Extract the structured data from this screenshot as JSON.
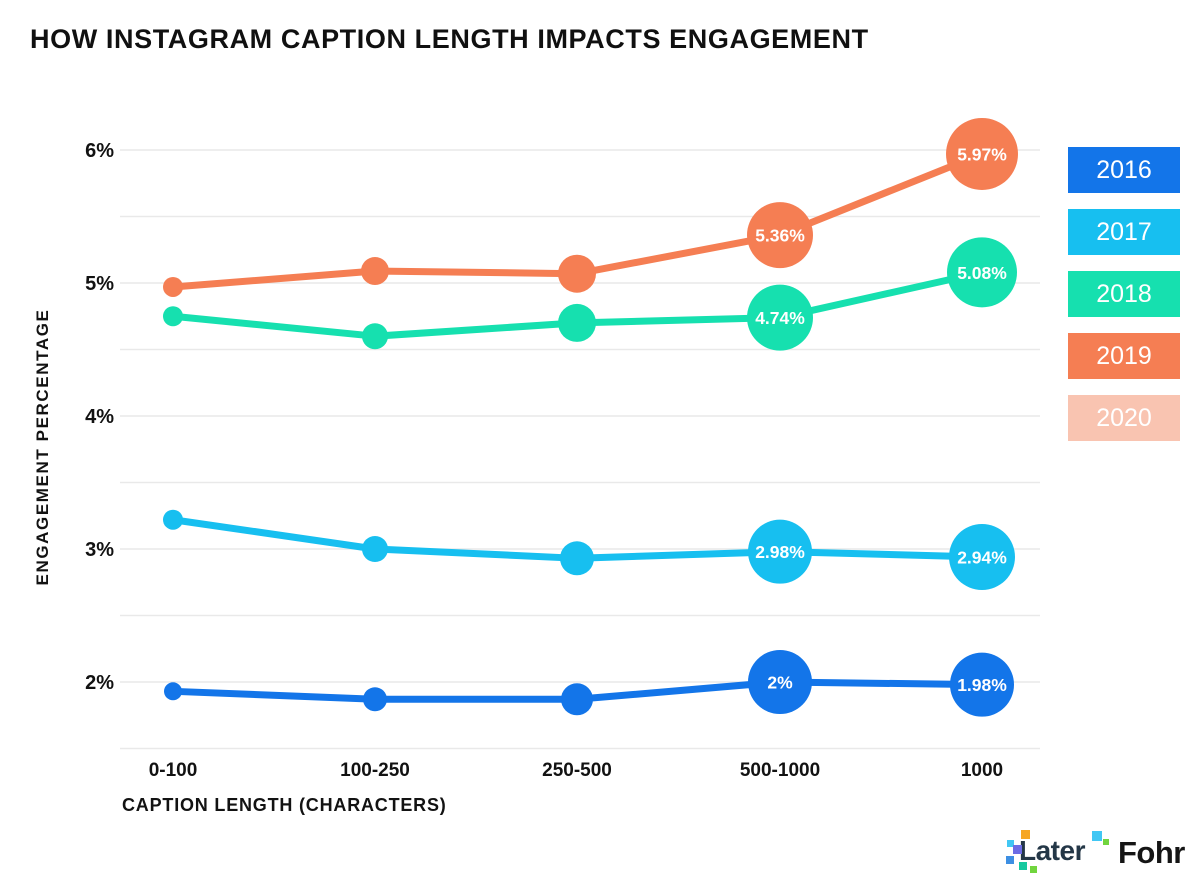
{
  "title": "HOW INSTAGRAM CAPTION LENGTH IMPACTS ENGAGEMENT",
  "chart_data": {
    "type": "line",
    "title": "HOW INSTAGRAM CAPTION LENGTH IMPACTS ENGAGEMENT",
    "categories": [
      "0-100",
      "100-250",
      "250-500",
      "500-1000",
      "1000"
    ],
    "xlabel": "CAPTION LENGTH (CHARACTERS)",
    "ylabel": "ENGAGEMENT PERCENTAGE",
    "ylim": [
      1.5,
      6
    ],
    "ytick_step": 0.5,
    "grid": true,
    "legend_position": "right",
    "yticks": [
      {
        "value": 6,
        "label": "6%"
      },
      {
        "value": 5,
        "label": "5%"
      },
      {
        "value": 4,
        "label": "4%"
      },
      {
        "value": 3,
        "label": "3%"
      },
      {
        "value": 2,
        "label": "2%"
      }
    ],
    "series": [
      {
        "name": "2016",
        "color": "#1375E9",
        "values": [
          1.93,
          1.87,
          1.87,
          2.0,
          1.98
        ],
        "labels": [
          null,
          null,
          null,
          "2%",
          "1.98%"
        ],
        "radii": [
          9,
          12,
          16,
          32,
          32
        ]
      },
      {
        "name": "2017",
        "color": "#17BFF0",
        "values": [
          3.22,
          3.0,
          2.93,
          2.98,
          2.94
        ],
        "labels": [
          null,
          null,
          null,
          "2.98%",
          "2.94%"
        ],
        "radii": [
          10,
          13,
          17,
          32,
          33
        ]
      },
      {
        "name": "2018",
        "color": "#16E0AF",
        "values": [
          4.75,
          4.6,
          4.7,
          4.74,
          5.08
        ],
        "labels": [
          null,
          null,
          null,
          "4.74%",
          "5.08%"
        ],
        "radii": [
          10,
          13,
          19,
          33,
          35
        ]
      },
      {
        "name": "2019",
        "color": "#F57E53",
        "values": [
          4.97,
          5.09,
          5.07,
          5.36,
          5.97
        ],
        "labels": [
          null,
          null,
          null,
          "5.36%",
          "5.97%"
        ],
        "radii": [
          10,
          14,
          19,
          33,
          36
        ]
      },
      {
        "name": "2020",
        "color": "#F9C4B1",
        "values": [],
        "labels": [],
        "radii": []
      }
    ]
  },
  "colors": {
    "grid_line": "#E9E9E9",
    "axis_text": "#121212",
    "point_label_text": "#FFFFFF"
  },
  "footer": {
    "later_text": "Later",
    "fohr_text": "Fohr",
    "later_square_colors": [
      "#F6A623",
      "#41C7F4",
      "#6C6CE5",
      "#3D8FE3",
      "#17C9A0",
      "#71D53E",
      "#41C7F4",
      "#71D53E"
    ]
  }
}
